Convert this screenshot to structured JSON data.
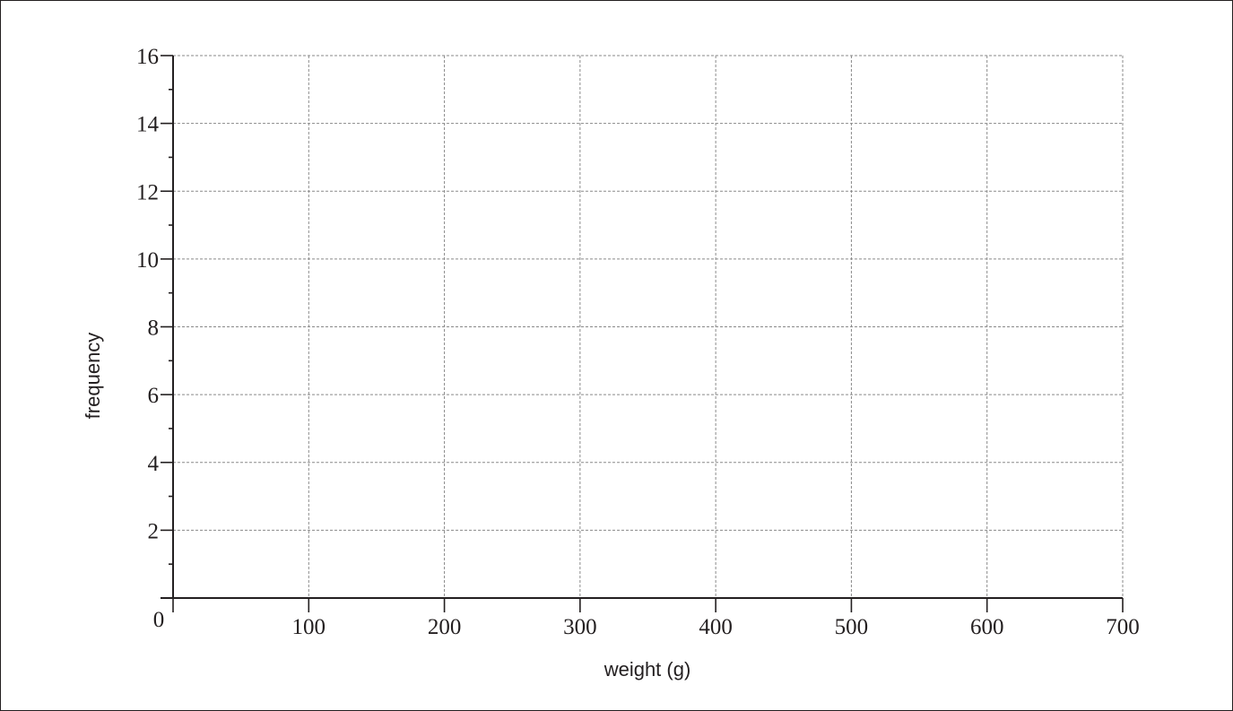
{
  "chart_data": {
    "type": "bar",
    "title": "",
    "xlabel": "weight (g)",
    "ylabel": "frequency",
    "xlim": [
      0,
      700
    ],
    "ylim": [
      0,
      16
    ],
    "x_ticks": [
      100,
      200,
      300,
      400,
      500,
      600,
      700
    ],
    "y_ticks": [
      2,
      4,
      6,
      8,
      10,
      12,
      14,
      16
    ],
    "origin_label": "0",
    "x_minor_step": 0,
    "y_minor_step": 1,
    "grid": true,
    "series": [],
    "colors": {
      "axis": "#231f20",
      "grid": "#8a8a8a"
    }
  }
}
